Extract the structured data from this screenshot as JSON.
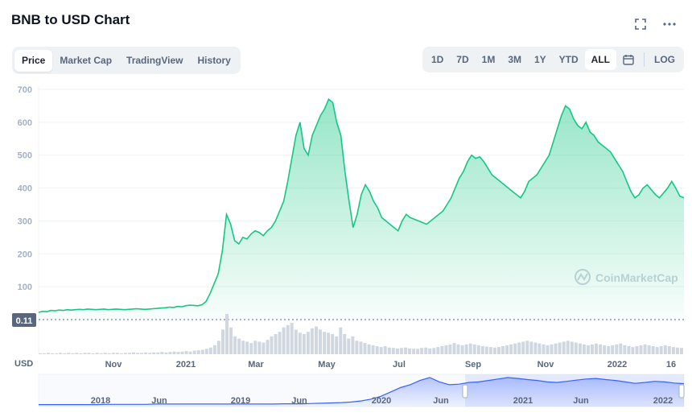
{
  "header": {
    "title": "BNB to USD Chart",
    "fullscreen_icon": "expand-icon",
    "more_icon": "more-dots-icon"
  },
  "tabs": [
    {
      "label": "Price",
      "active": true
    },
    {
      "label": "Market Cap",
      "active": false
    },
    {
      "label": "TradingView",
      "active": false
    },
    {
      "label": "History",
      "active": false
    }
  ],
  "ranges": [
    {
      "label": "1D",
      "active": false
    },
    {
      "label": "7D",
      "active": false
    },
    {
      "label": "1M",
      "active": false
    },
    {
      "label": "3M",
      "active": false
    },
    {
      "label": "1Y",
      "active": false
    },
    {
      "label": "YTD",
      "active": false
    },
    {
      "label": "ALL",
      "active": true
    }
  ],
  "calendar_icon": "calendar-icon",
  "log_label": "LOG",
  "watermark": "CoinMarketCap",
  "currency_label": "USD",
  "colors": {
    "line": "#16c784",
    "fill_top": "#16c784",
    "navigator_line": "#3861fb",
    "axis_text": "#58667e"
  },
  "chart_data": {
    "type": "area",
    "title": "BNB to USD Chart",
    "ylabel": "USD",
    "ylim": [
      0,
      700
    ],
    "yticks": [
      100,
      200,
      300,
      400,
      500,
      600,
      700
    ],
    "xticks": [
      "Nov",
      "2021",
      "Mar",
      "May",
      "Jul",
      "Sep",
      "Nov",
      "2022",
      "16"
    ],
    "reference_label": "0.11",
    "grid": true,
    "series": [
      {
        "values": [
          22,
          25,
          24,
          28,
          27,
          29,
          28,
          30,
          29,
          30,
          31,
          30,
          32,
          31,
          30,
          31,
          32,
          30,
          31,
          32,
          31,
          30,
          31,
          32,
          33,
          32,
          31,
          32,
          33,
          34,
          35,
          36,
          38,
          37,
          40,
          39,
          42,
          44,
          43,
          42,
          45,
          55,
          80,
          110,
          140,
          210,
          320,
          290,
          240,
          230,
          250,
          245,
          260,
          270,
          265,
          255,
          270,
          280,
          300,
          330,
          360,
          420,
          490,
          560,
          600,
          520,
          500,
          560,
          590,
          620,
          640,
          670,
          660,
          600,
          560,
          450,
          360,
          280,
          320,
          380,
          410,
          390,
          360,
          340,
          310,
          300,
          290,
          280,
          270,
          300,
          320,
          310,
          305,
          300,
          295,
          290,
          300,
          310,
          320,
          330,
          350,
          370,
          400,
          430,
          450,
          480,
          500,
          490,
          495,
          480,
          460,
          440,
          430,
          420,
          410,
          400,
          390,
          380,
          370,
          390,
          420,
          430,
          440,
          460,
          480,
          500,
          540,
          580,
          620,
          650,
          640,
          610,
          590,
          580,
          600,
          570,
          560,
          540,
          530,
          520,
          510,
          490,
          470,
          450,
          420,
          390,
          370,
          380,
          400,
          410,
          395,
          380,
          370,
          385,
          400,
          420,
          400,
          375,
          370
        ]
      }
    ],
    "volume": [
      2,
      2,
      3,
      2,
      2,
      3,
      2,
      3,
      2,
      3,
      2,
      3,
      3,
      2,
      3,
      2,
      3,
      2,
      3,
      3,
      2,
      3,
      3,
      4,
      3,
      3,
      4,
      3,
      4,
      4,
      5,
      4,
      5,
      6,
      5,
      6,
      7,
      6,
      8,
      9,
      10,
      12,
      15,
      20,
      30,
      55,
      90,
      60,
      40,
      35,
      30,
      28,
      25,
      30,
      28,
      26,
      32,
      40,
      45,
      50,
      60,
      65,
      70,
      55,
      48,
      45,
      50,
      58,
      62,
      55,
      50,
      48,
      45,
      40,
      60,
      45,
      35,
      40,
      30,
      28,
      25,
      22,
      20,
      18,
      16,
      18,
      15,
      14,
      13,
      14,
      15,
      13,
      12,
      12,
      14,
      15,
      13,
      14,
      16,
      18,
      20,
      22,
      25,
      22,
      20,
      22,
      24,
      22,
      20,
      18,
      17,
      16,
      15,
      16,
      18,
      20,
      22,
      24,
      26,
      28,
      30,
      28,
      26,
      24,
      22,
      20,
      22,
      24,
      26,
      28,
      30,
      28,
      26,
      24,
      22,
      20,
      22,
      24,
      22,
      20,
      18,
      20,
      22,
      24,
      20,
      18,
      16,
      18,
      20,
      22,
      20,
      18,
      16,
      18,
      20,
      18,
      16,
      15,
      14
    ],
    "navigator": {
      "xticks": [
        "2018",
        "Jun",
        "2019",
        "Jun",
        "2020",
        "Jun",
        "2021",
        "Jun",
        "2022"
      ],
      "values": [
        1,
        1,
        1,
        1,
        1,
        1,
        1,
        2,
        2,
        2,
        2,
        2,
        3,
        3,
        3,
        3,
        3,
        3,
        3,
        3,
        3,
        3,
        3,
        3,
        3,
        4,
        4,
        4,
        5,
        6,
        7,
        8,
        10,
        14,
        20,
        30,
        45,
        60,
        70,
        85,
        95,
        80,
        70,
        72,
        78,
        80,
        85,
        90,
        95,
        92,
        88,
        85,
        80,
        78,
        82,
        86,
        90,
        92,
        88,
        85,
        80,
        75,
        78,
        82,
        80,
        76,
        74
      ]
    }
  }
}
